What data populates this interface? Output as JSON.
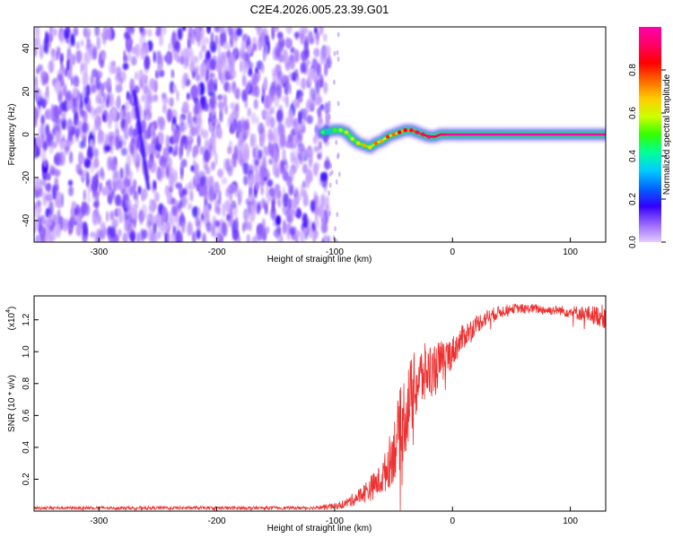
{
  "title": "C2E4.2026.005.23.39.G01",
  "chart_data": [
    {
      "type": "heatmap",
      "xlabel": "Height of straight line (km)",
      "ylabel": "Frequency (Hz)",
      "xlim": [
        -355,
        130
      ],
      "ylim": [
        -50,
        50
      ],
      "xticks": [
        -300,
        -200,
        -100,
        0,
        100
      ],
      "yticks": [
        -40,
        -20,
        0,
        20,
        40
      ],
      "colorbar": {
        "label": "Normalized spectral amplitude",
        "range": [
          0,
          1
        ],
        "ticks": [
          0.0,
          0.2,
          0.4,
          0.6,
          0.8
        ],
        "tick_labels": [
          "0.0",
          "0.2",
          "0.4",
          "0.6",
          "0.8"
        ],
        "stops": [
          "#e6ccff",
          "#9966ff",
          "#3300ff",
          "#0066ff",
          "#00ccff",
          "#00ff99",
          "#33ff00",
          "#ccff00",
          "#ffcc00",
          "#ff6600",
          "#ff0000",
          "#ff0066",
          "#ff00aa"
        ]
      },
      "noise_region": {
        "x": [
          -355,
          -105
        ],
        "amplitude": 0.1
      },
      "signal_trace": {
        "x": [
          -110,
          -100,
          -95,
          -90,
          -85,
          -80,
          -75,
          -70,
          -65,
          -60,
          -55,
          -50,
          -45,
          -40,
          -35,
          -30,
          -25,
          -20,
          -15,
          -10,
          -5,
          0,
          20,
          40,
          60,
          80,
          100,
          130
        ],
        "freq": [
          1,
          2,
          2,
          1,
          -2,
          -4,
          -5,
          -6,
          -4,
          -3,
          -1,
          0,
          1,
          2,
          2,
          1,
          0,
          -1,
          -1,
          0,
          0,
          0,
          0,
          0,
          0,
          0,
          0,
          0
        ],
        "amplitude": [
          0.3,
          0.35,
          0.4,
          0.5,
          0.45,
          0.5,
          0.55,
          0.5,
          0.6,
          0.55,
          0.65,
          0.6,
          0.7,
          0.7,
          0.75,
          0.8,
          0.8,
          0.85,
          0.9,
          0.9,
          0.95,
          1.0,
          1.0,
          1.0,
          1.0,
          1.0,
          1.0,
          1.0
        ]
      },
      "streaks": [
        {
          "x": [
            -270,
            -258
          ],
          "freq": [
            20,
            -25
          ]
        },
        {
          "x": [
            -158,
            -158
          ],
          "freq": [
            6,
            -6
          ]
        }
      ]
    },
    {
      "type": "line",
      "xlabel": "Height of straight line (km)",
      "ylabel": "SNR (10 * v/v)",
      "y_multiplier": "(x10",
      "y_multiplier_exp": "4",
      "y_multiplier_close": ")",
      "xlim": [
        -355,
        130
      ],
      "ylim": [
        0,
        1.35
      ],
      "xticks": [
        -300,
        -200,
        -100,
        0,
        100
      ],
      "yticks": [
        0.2,
        0.4,
        0.6,
        0.8,
        1.0,
        1.2
      ],
      "ytick_labels": [
        "0.2",
        "0.4",
        "0.6",
        "0.8",
        "1.0",
        "1.2"
      ],
      "series": [
        {
          "name": "SNR",
          "color": "#ee3030",
          "x": [
            -355,
            -300,
            -200,
            -120,
            -100,
            -90,
            -80,
            -70,
            -60,
            -55,
            -50,
            -45,
            -40,
            -35,
            -30,
            -25,
            -20,
            -15,
            -10,
            -5,
            0,
            5,
            10,
            20,
            30,
            40,
            50,
            60,
            70,
            80,
            90,
            100,
            110,
            120,
            130
          ],
          "y": [
            0.02,
            0.02,
            0.02,
            0.02,
            0.03,
            0.05,
            0.09,
            0.14,
            0.2,
            0.28,
            0.38,
            0.5,
            0.62,
            0.72,
            0.8,
            0.85,
            0.88,
            0.9,
            0.93,
            0.96,
            1.0,
            1.05,
            1.1,
            1.17,
            1.22,
            1.25,
            1.27,
            1.27,
            1.27,
            1.26,
            1.26,
            1.25,
            1.24,
            1.23,
            1.22
          ],
          "noise": [
            0.01,
            0.01,
            0.01,
            0.01,
            0.02,
            0.03,
            0.05,
            0.08,
            0.1,
            0.15,
            0.2,
            0.25,
            0.28,
            0.25,
            0.22,
            0.2,
            0.18,
            0.16,
            0.14,
            0.12,
            0.1,
            0.09,
            0.08,
            0.06,
            0.05,
            0.04,
            0.03,
            0.03,
            0.03,
            0.03,
            0.03,
            0.04,
            0.05,
            0.06,
            0.08
          ]
        }
      ]
    }
  ]
}
